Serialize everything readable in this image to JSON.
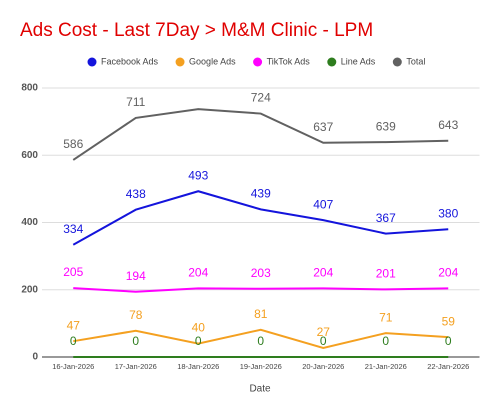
{
  "chart_data": {
    "type": "line",
    "title": "Ads Cost - Last 7Day > M&M Clinic - LPM",
    "x_label": "Date",
    "categories": [
      "16-Jan-2026",
      "17-Jan-2026",
      "18-Jan-2026",
      "19-Jan-2026",
      "20-Jan-2026",
      "21-Jan-2026",
      "22-Jan-2026"
    ],
    "series": [
      {
        "name": "Facebook Ads",
        "color": "#1414dc",
        "values": [
          334,
          438,
          493,
          439,
          407,
          367,
          380
        ]
      },
      {
        "name": "Google Ads",
        "color": "#f4a020",
        "values": [
          47,
          78,
          40,
          81,
          27,
          71,
          59
        ]
      },
      {
        "name": "TikTok Ads",
        "color": "#ff00ff",
        "values": [
          205,
          194,
          204,
          203,
          204,
          201,
          204
        ]
      },
      {
        "name": "Line Ads",
        "color": "#2e7d1e",
        "values": [
          0,
          0,
          0,
          0,
          0,
          0,
          0
        ]
      },
      {
        "name": "Total",
        "color": "#616161",
        "values": [
          586,
          711,
          737,
          724,
          637,
          639,
          643
        ],
        "value_labels": [
          "586",
          "711",
          null,
          "724",
          "637",
          "639",
          "643"
        ]
      }
    ],
    "ylim": [
      0,
      800
    ],
    "yticks": [
      0,
      200,
      400,
      600,
      800
    ],
    "grid": true
  }
}
